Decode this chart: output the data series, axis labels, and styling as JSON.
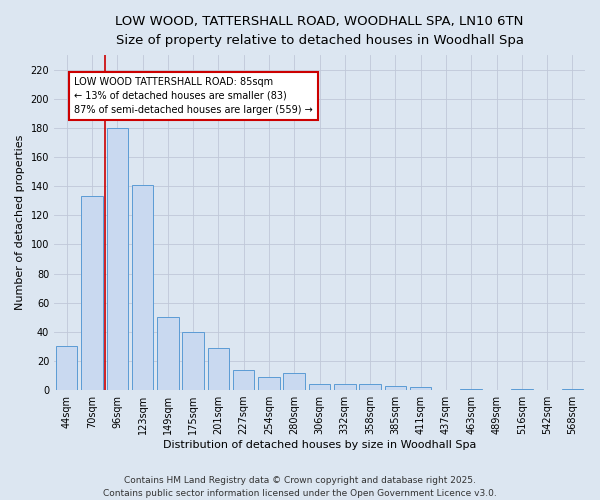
{
  "title_line1": "LOW WOOD, TATTERSHALL ROAD, WOODHALL SPA, LN10 6TN",
  "title_line2": "Size of property relative to detached houses in Woodhall Spa",
  "xlabel": "Distribution of detached houses by size in Woodhall Spa",
  "ylabel": "Number of detached properties",
  "categories": [
    "44sqm",
    "70sqm",
    "96sqm",
    "123sqm",
    "149sqm",
    "175sqm",
    "201sqm",
    "227sqm",
    "254sqm",
    "280sqm",
    "306sqm",
    "332sqm",
    "358sqm",
    "385sqm",
    "411sqm",
    "437sqm",
    "463sqm",
    "489sqm",
    "516sqm",
    "542sqm",
    "568sqm"
  ],
  "values": [
    30,
    133,
    180,
    141,
    50,
    40,
    29,
    14,
    9,
    12,
    4,
    4,
    4,
    3,
    2,
    0,
    1,
    0,
    1,
    0,
    1
  ],
  "bar_color": "#c9d9f0",
  "bar_edge_color": "#5b9bd5",
  "vline_x": 1.5,
  "vline_color": "#cc0000",
  "annotation_text": "LOW WOOD TATTERSHALL ROAD: 85sqm\n← 13% of detached houses are smaller (83)\n87% of semi-detached houses are larger (559) →",
  "annotation_box_color": "#ffffff",
  "annotation_box_edge": "#cc0000",
  "ylim": [
    0,
    230
  ],
  "yticks": [
    0,
    20,
    40,
    60,
    80,
    100,
    120,
    140,
    160,
    180,
    200,
    220
  ],
  "grid_color": "#c0c8d8",
  "bg_color": "#dce6f1",
  "footer_text": "Contains HM Land Registry data © Crown copyright and database right 2025.\nContains public sector information licensed under the Open Government Licence v3.0.",
  "title_fontsize": 9.5,
  "subtitle_fontsize": 8.5,
  "tick_fontsize": 7,
  "label_fontsize": 8,
  "footer_fontsize": 6.5,
  "annot_fontsize": 7
}
